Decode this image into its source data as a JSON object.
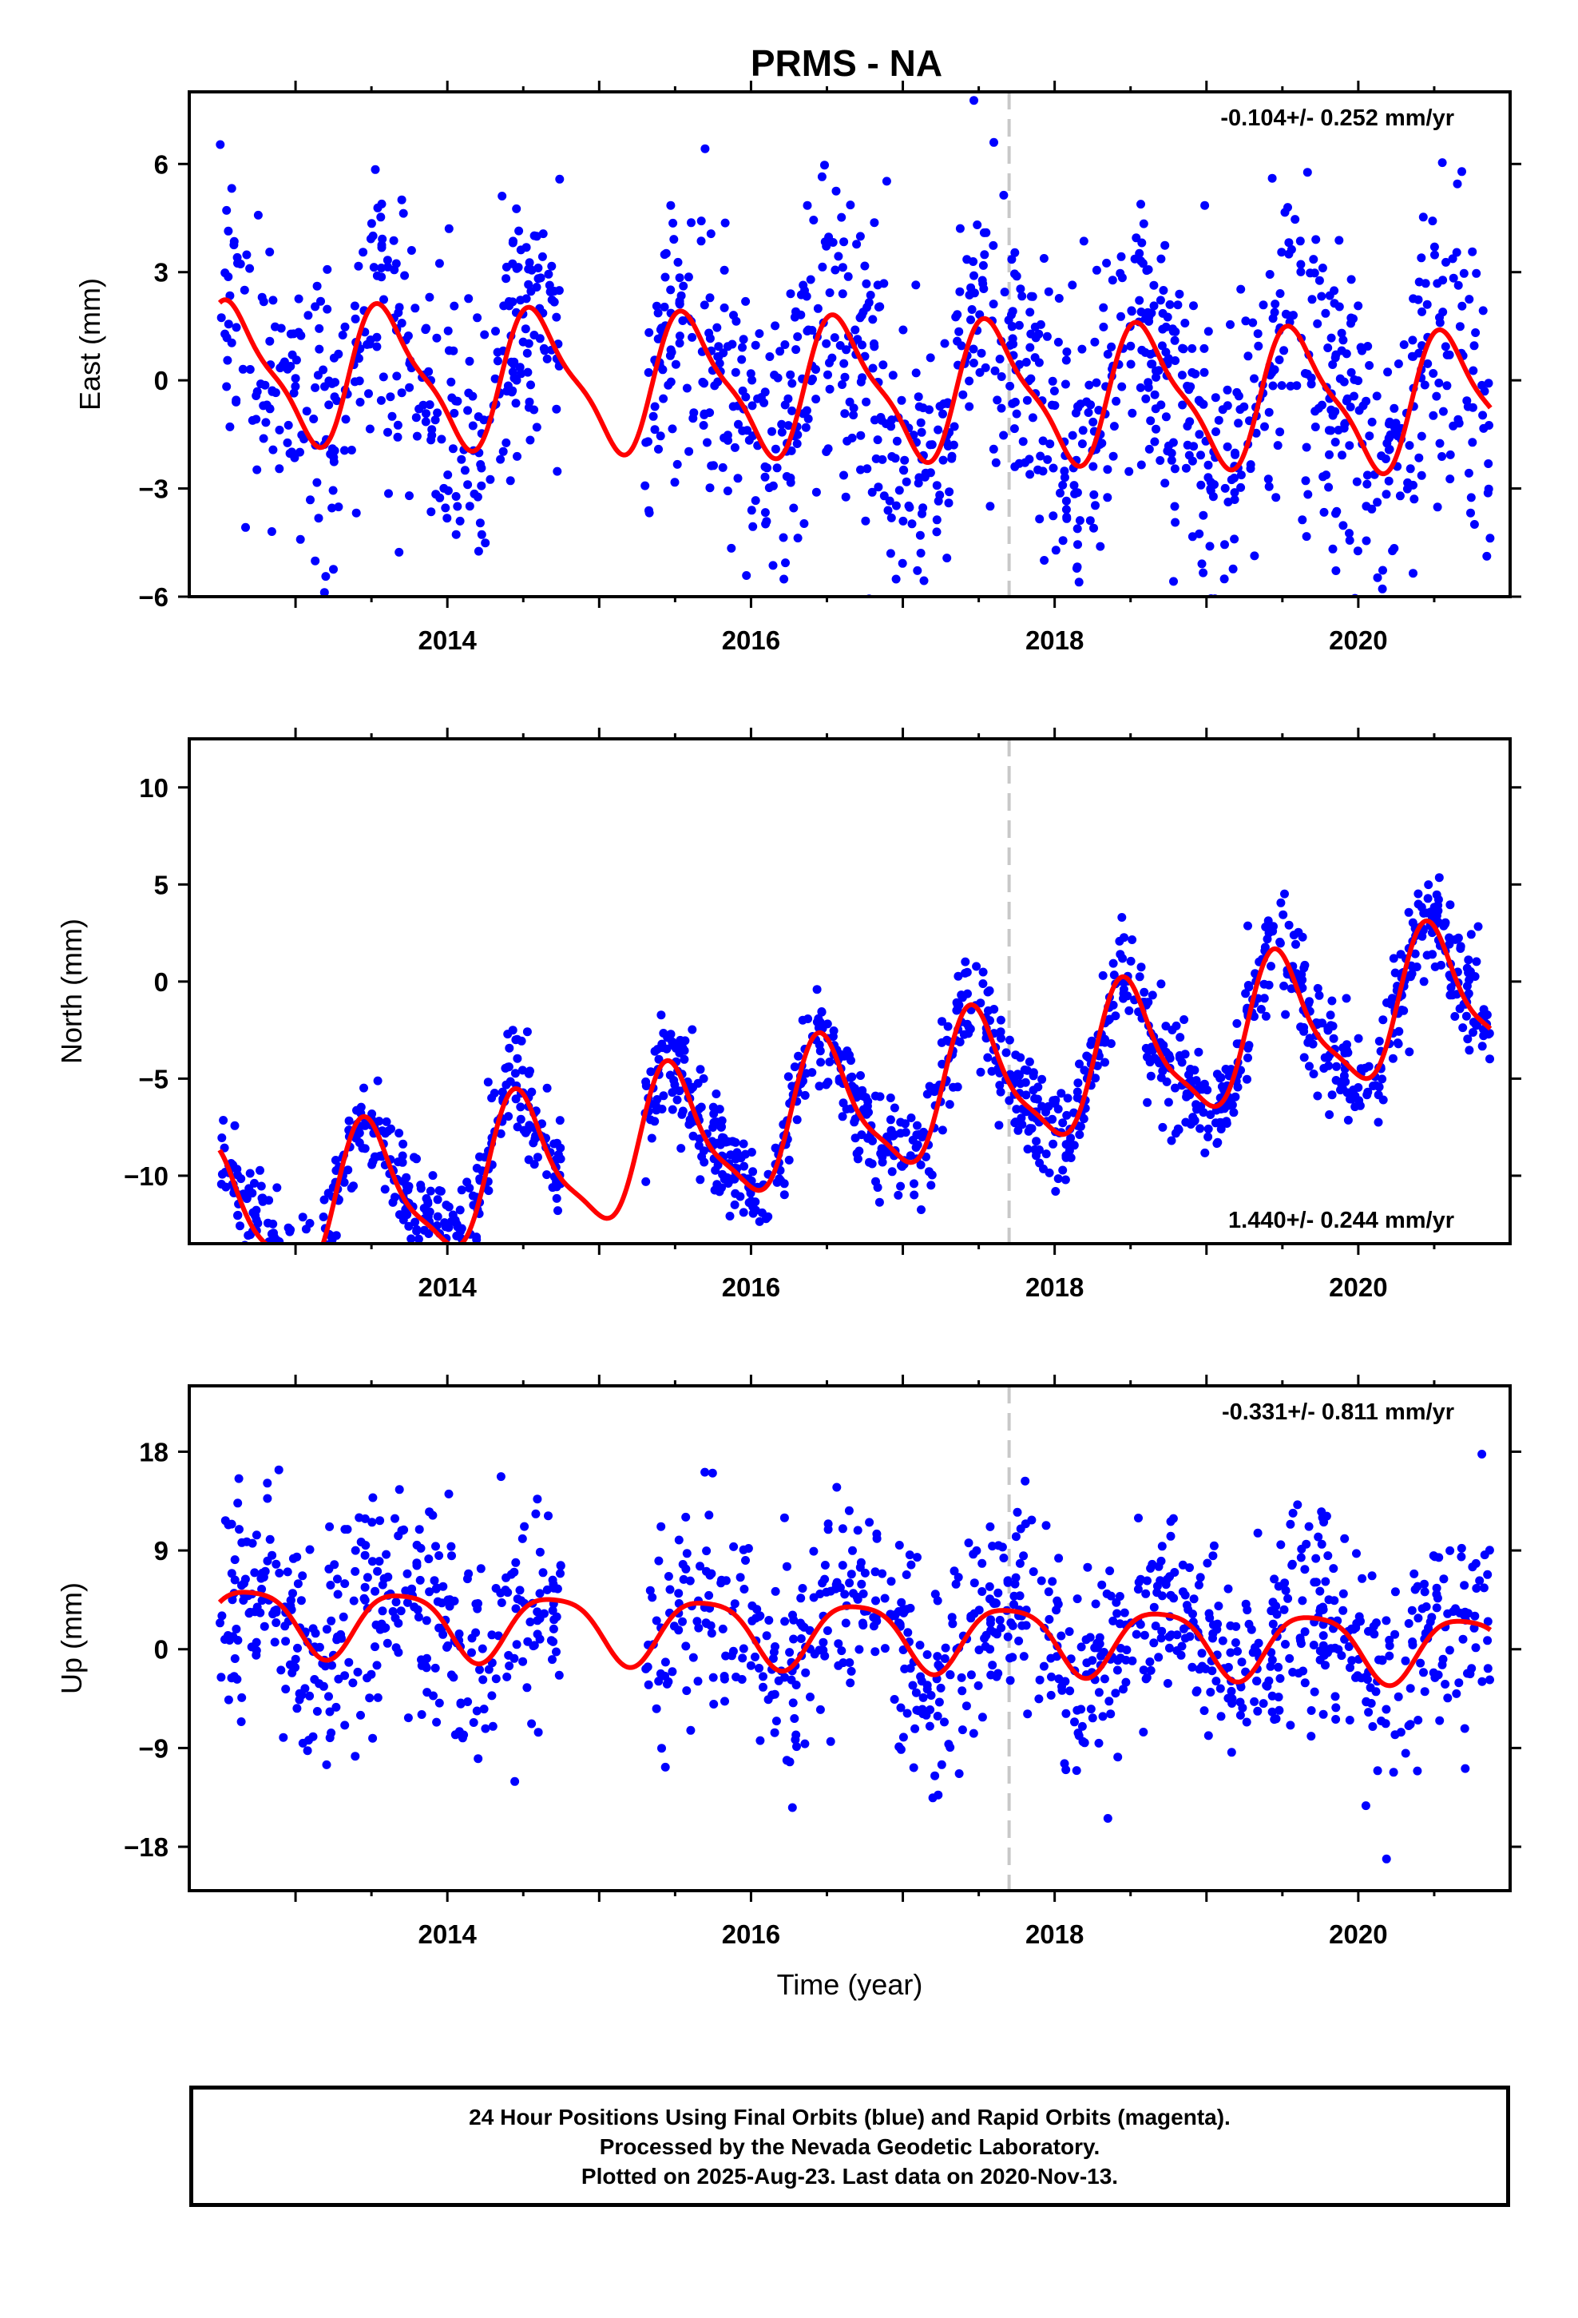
{
  "figure": {
    "title": "PRMS - NA",
    "footer": [
      "24 Hour Positions Using Final Orbits (blue) and Rapid Orbits (magenta).",
      "Processed by the Nevada Geodetic Laboratory.",
      "Plotted on 2025-Aug-23. Last data on 2020-Nov-13."
    ]
  },
  "colors": {
    "points": "#0000ff",
    "model": "#ff0000",
    "marker_line": "#c8c8c8",
    "frame": "#000000"
  },
  "chart_data": [
    {
      "type": "scatter",
      "title": "",
      "ylabel": "East (mm)",
      "xlabel": "",
      "xlim": [
        2012.3,
        2021.0
      ],
      "ylim": [
        -6,
        8
      ],
      "xticks": [
        "2014",
        "2016",
        "2018",
        "2020"
      ],
      "yticks": [
        "6",
        "3",
        "0",
        "-3",
        "-6"
      ],
      "rate_text": "-0.104+/- 0.252 mm/yr",
      "rate_position": "top-right",
      "vertical_marker_x": 2017.7,
      "data_range": [
        2012.5,
        2020.87
      ],
      "gap": [
        2014.75,
        2015.3
      ],
      "model": {
        "offset": -0.2,
        "trend": -0.104,
        "annual_amplitude": 1.8,
        "annual_peak": 2012.6,
        "semiannual_amplitude": 0.5,
        "semiannual_phase": 0.3
      },
      "scatter": 2.0,
      "n_points": 1500
    },
    {
      "type": "scatter",
      "title": "",
      "ylabel": "North (mm)",
      "xlabel": "",
      "xlim": [
        2012.3,
        2021.0
      ],
      "ylim": [
        -13.5,
        12.5
      ],
      "xticks": [
        "2014",
        "2016",
        "2018",
        "2020"
      ],
      "yticks": [
        "10",
        "5",
        "0",
        "-5",
        "-10"
      ],
      "rate_text": "1.440+/- 0.244 mm/yr",
      "rate_position": "bottom-right",
      "vertical_marker_x": 2017.7,
      "data_range": [
        2012.5,
        2020.87
      ],
      "gap": [
        2014.75,
        2015.3
      ],
      "model": {
        "offset": -6.8,
        "trend": 1.44,
        "annual_amplitude": 3.5,
        "annual_peak": 2012.48,
        "semiannual_amplitude": 0.9,
        "semiannual_phase": 1.1
      },
      "scatter": 1.4,
      "n_points": 1500
    },
    {
      "type": "scatter",
      "title": "",
      "ylabel": "Up (mm)",
      "xlabel": "Time (year)",
      "xlim": [
        2012.3,
        2021.0
      ],
      "ylim": [
        -22,
        24
      ],
      "xticks": [
        "2014",
        "2016",
        "2018",
        "2020"
      ],
      "yticks": [
        "18",
        "9",
        "0",
        "-9",
        "-18"
      ],
      "rate_text": "-0.331+/- 0.811 mm/yr",
      "rate_position": "top-right",
      "vertical_marker_x": 2017.7,
      "data_range": [
        2012.5,
        2020.87
      ],
      "gap": [
        2014.75,
        2015.3
      ],
      "model": {
        "offset": 1.5,
        "trend": -0.331,
        "annual_amplitude": 3.0,
        "annual_peak": 2012.7,
        "semiannual_amplitude": 0.6,
        "semiannual_phase": 0.5
      },
      "scatter": 5.0,
      "n_points": 1300
    }
  ]
}
